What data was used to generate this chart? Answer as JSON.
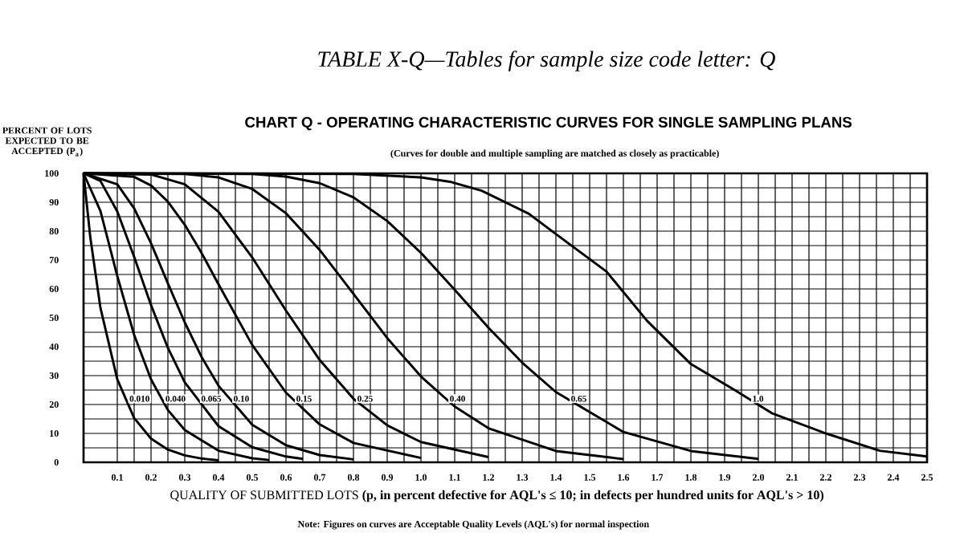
{
  "chart_data": {
    "type": "line",
    "title": "TABLE X-Q—Tables for sample size code letter: Q",
    "subtitle": "CHART Q  -  OPERATING CHARACTERISTIC CURVES FOR SINGLE SAMPLING PLANS",
    "annotations": [
      "(Curves for double and multiple sampling are matched as closely as practicable)",
      "Note: Figures on curves are Acceptable Quality Levels (AQL's) for normal inspection"
    ],
    "xlabel": "QUALITY OF SUBMITTED LOTS **(p, in percent defective for AQL's ≤ 10; in defects per hundred units for AQL's > 10)**",
    "ylabel": "PERCENT OF LOTS EXPECTED TO BE ACCEPTED (P$_{a}$)",
    "xlim": [
      0,
      2.5
    ],
    "ylim": [
      0,
      100
    ],
    "xticks": [
      0.1,
      0.2,
      0.3,
      0.4,
      0.5,
      0.6,
      0.7,
      0.8,
      0.9,
      {
        "value": 1,
        "label": "1.0"
      },
      1.1,
      1.2,
      1.3,
      1.4,
      1.5,
      1.6,
      1.7,
      1.8,
      1.9,
      {
        "value": 2,
        "label": "2.0"
      },
      2.1,
      2.2,
      2.3,
      2.4,
      2.5
    ],
    "yticks": [
      0,
      10,
      20,
      30,
      40,
      50,
      60,
      70,
      80,
      90,
      100
    ],
    "grid": true,
    "line_style": "solid",
    "series": [
      {
        "name": "0.010",
        "color": "#000000",
        "x": [
          0,
          0.02,
          0.05,
          0.1,
          0.15,
          0.2,
          0.25,
          0.3,
          0.35,
          0.4
        ],
        "values": [
          100,
          77.9,
          53.5,
          28.7,
          15.3,
          8.2,
          4.4,
          2.4,
          1.3,
          0.7
        ]
      },
      {
        "name": "0.040",
        "color": "#000000",
        "x": [
          0,
          0.05,
          0.1,
          0.15,
          0.2,
          0.25,
          0.3,
          0.4,
          0.5,
          0.55
        ],
        "values": [
          100,
          87.0,
          64.5,
          44.1,
          28.7,
          18.1,
          11.2,
          4.0,
          1.4,
          0.8
        ]
      },
      {
        "name": "0.065",
        "color": "#000000",
        "x": [
          0,
          0.05,
          0.1,
          0.15,
          0.2,
          0.25,
          0.3,
          0.4,
          0.5,
          0.6,
          0.65
        ],
        "values": [
          100,
          97.4,
          86.8,
          71.1,
          54.4,
          39.6,
          27.7,
          12.5,
          5.2,
          2.0,
          1.2
        ]
      },
      {
        "name": "0.10",
        "color": "#000000",
        "x": [
          0,
          0.1,
          0.15,
          0.2,
          0.25,
          0.3,
          0.35,
          0.4,
          0.5,
          0.6,
          0.7,
          0.8
        ],
        "values": [
          100,
          96.2,
          87.9,
          75.8,
          61.9,
          48.4,
          36.4,
          26.5,
          13.0,
          5.9,
          2.5,
          1.0
        ]
      },
      {
        "name": "0.15",
        "color": "#000000",
        "x": [
          0,
          0.15,
          0.2,
          0.25,
          0.3,
          0.35,
          0.4,
          0.5,
          0.6,
          0.7,
          0.8,
          1.0
        ],
        "values": [
          100,
          98.8,
          95.8,
          90.2,
          82.2,
          72.4,
          61.6,
          40.6,
          24.1,
          13.1,
          6.7,
          1.5
        ]
      },
      {
        "name": "0.25",
        "color": "#000000",
        "x": [
          0,
          0.2,
          0.3,
          0.4,
          0.5,
          0.6,
          0.7,
          0.8,
          0.9,
          1.0,
          1.2
        ],
        "values": [
          100,
          99.6,
          96.2,
          86.7,
          70.9,
          52.5,
          35.4,
          22.0,
          12.8,
          7.0,
          1.8
        ]
      },
      {
        "name": "0.40",
        "color": "#000000",
        "x": [
          0,
          0.3,
          0.4,
          0.5,
          0.6,
          0.7,
          0.8,
          0.9,
          1.0,
          1.1,
          1.2,
          1.4,
          1.6
        ],
        "values": [
          100,
          99.8,
          98.6,
          94.6,
          86.2,
          73.5,
          58.3,
          43.0,
          29.7,
          19.3,
          11.8,
          3.9,
          1.1
        ]
      },
      {
        "name": "0.65",
        "color": "#000000",
        "x": [
          0,
          0.5,
          0.6,
          0.7,
          0.8,
          0.9,
          1.0,
          1.1,
          1.2,
          1.3,
          1.4,
          1.6,
          1.8,
          2.0
        ],
        "values": [
          100,
          99.8,
          98.9,
          96.6,
          91.7,
          83.5,
          72.5,
          59.7,
          46.6,
          34.5,
          24.3,
          10.5,
          3.9,
          1.2
        ]
      },
      {
        "name": "1.0",
        "color": "#000000",
        "x": [
          0,
          0.8,
          1.0,
          1.09,
          1.18,
          1.32,
          1.4,
          1.55,
          1.67,
          1.8,
          1.93,
          2.04,
          2.2,
          2.36,
          2.5
        ],
        "values": [
          100,
          99.8,
          98.6,
          97,
          94,
          86,
          79,
          66,
          49,
          34,
          25,
          17,
          10,
          4,
          2
        ]
      }
    ]
  }
}
